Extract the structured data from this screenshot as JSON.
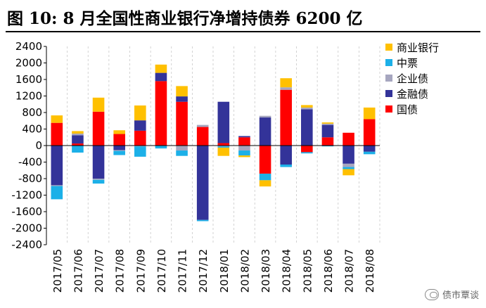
{
  "header": {
    "title": "图 10:  8 月全国性商业银行净增持债券 6200 亿"
  },
  "watermark": {
    "icon": "wechat-icon",
    "text": "债市覃谈"
  },
  "colors": {
    "国债": "#ff0000",
    "金融债": "#333399",
    "企业债": "#a6a6bf",
    "中票": "#1cb0e8",
    "商业银行": "#ffc000"
  },
  "chart_data": {
    "type": "bar",
    "stacked": true,
    "categories": [
      "2017/05",
      "2017/06",
      "2017/07",
      "2017/08",
      "2017/09",
      "2017/10",
      "2017/11",
      "2017/12",
      "2018/01",
      "2018/02",
      "2018/03",
      "2018/04",
      "2018/05",
      "2018/06",
      "2018/07",
      "2018/08"
    ],
    "series": [
      {
        "name": "国债",
        "values": [
          550,
          50,
          820,
          280,
          360,
          1560,
          1060,
          450,
          60,
          200,
          -680,
          1350,
          -160,
          200,
          310,
          640
        ]
      },
      {
        "name": "金融债",
        "values": [
          -960,
          200,
          -800,
          -110,
          250,
          200,
          130,
          -1800,
          1000,
          30,
          680,
          -460,
          880,
          300,
          -440,
          -150
        ]
      },
      {
        "name": "企业债",
        "values": [
          -20,
          40,
          -30,
          -20,
          -20,
          0,
          -120,
          50,
          -20,
          -120,
          40,
          60,
          40,
          30,
          -80,
          0
        ]
      },
      {
        "name": "中票",
        "values": [
          -320,
          -170,
          -90,
          -100,
          -250,
          -70,
          -130,
          -30,
          -30,
          -120,
          -160,
          -60,
          -30,
          -20,
          -50,
          -60
        ]
      },
      {
        "name": "商业银行",
        "values": [
          180,
          60,
          340,
          90,
          360,
          200,
          250,
          0,
          -200,
          -40,
          -150,
          220,
          60,
          30,
          -150,
          280
        ]
      }
    ],
    "legend_order": [
      "商业银行",
      "中票",
      "企业债",
      "金融债",
      "国债"
    ],
    "ylim": [
      -2400,
      2400
    ],
    "yticks": [
      -2400,
      -2000,
      -1600,
      -1200,
      -800,
      -400,
      0,
      400,
      800,
      1200,
      1600,
      2000,
      2400
    ],
    "grid": "vertical-dashed",
    "legend_position": "right"
  }
}
